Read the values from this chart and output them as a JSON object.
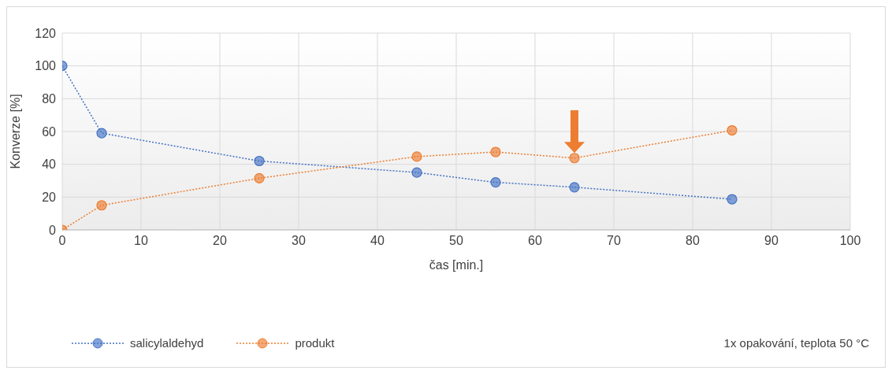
{
  "chart_data": {
    "type": "line",
    "xlabel": "čas [min.]",
    "ylabel": "Konverze [%]",
    "x": [
      0,
      5,
      25,
      45,
      55,
      65,
      85
    ],
    "series": [
      {
        "name": "salicylaldehyd",
        "color": "#4472c4",
        "values": [
          100,
          59,
          42,
          35,
          29,
          26,
          18.7
        ]
      },
      {
        "name": "produkt",
        "color": "#ed7d31",
        "values": [
          0,
          15,
          31.5,
          44.7,
          47.5,
          43.8,
          60.7
        ]
      }
    ],
    "xlim": [
      0,
      100
    ],
    "xticks": [
      0,
      10,
      20,
      30,
      40,
      50,
      60,
      70,
      80,
      90,
      100
    ],
    "ylim": [
      0,
      120
    ],
    "yticks": [
      0,
      20,
      40,
      60,
      80,
      100,
      120
    ],
    "grid": true,
    "legend": "bottom left",
    "marker": "circle",
    "line_style": "dotted",
    "annotations": [
      "1x opakování, teplota 50 °C"
    ]
  }
}
